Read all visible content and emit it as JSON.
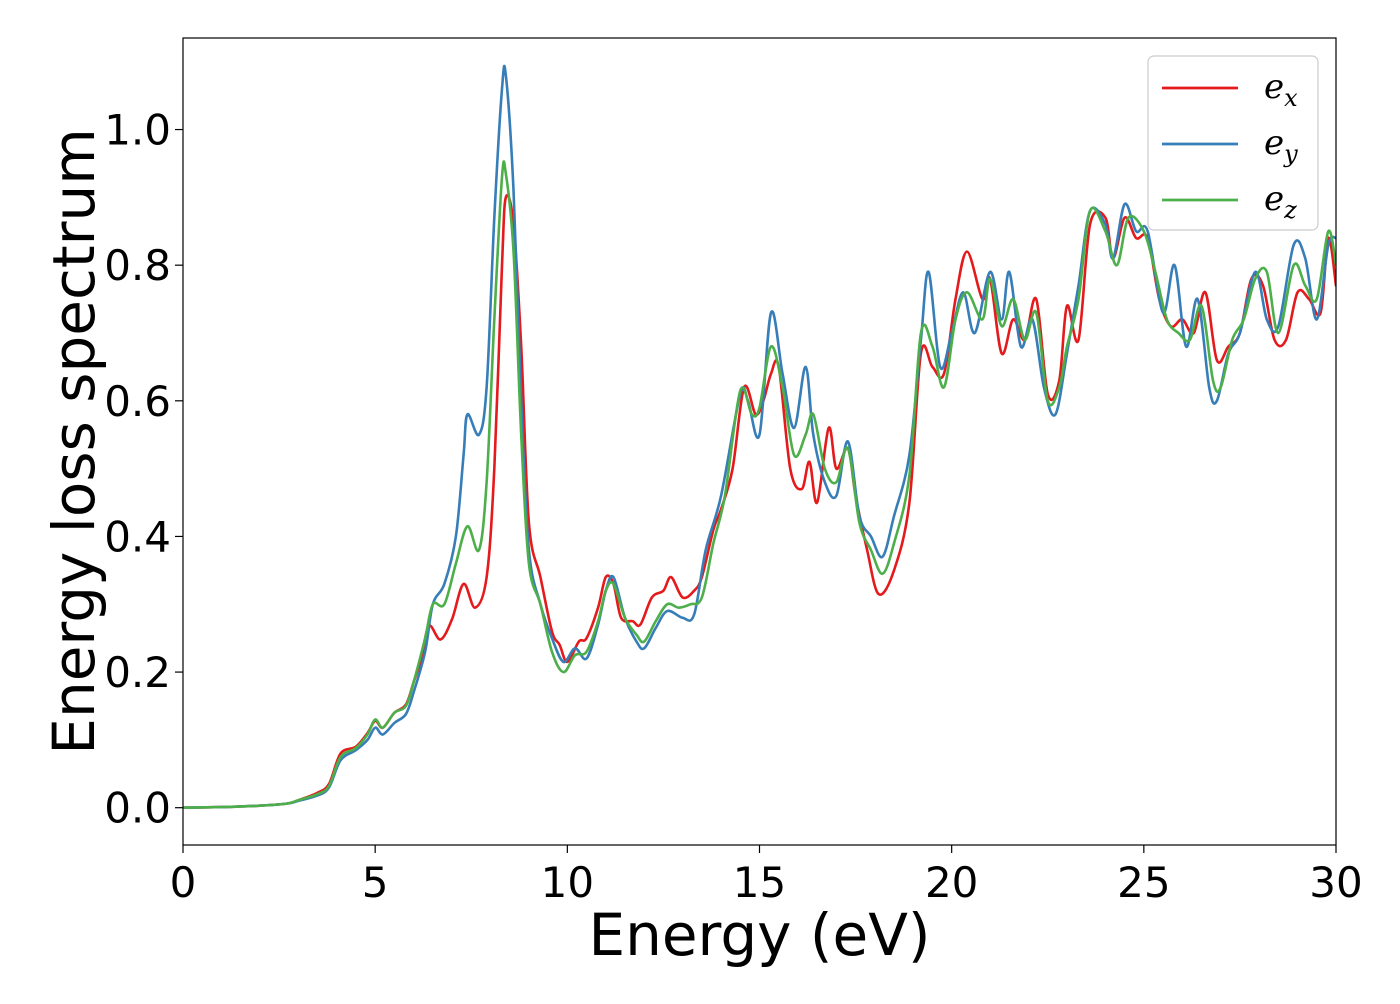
{
  "chart_data": {
    "type": "line",
    "title": "",
    "xlabel": "Energy (eV)",
    "ylabel": "Energy loss spectrum",
    "xlim": [
      0,
      30
    ],
    "ylim": [
      -0.055,
      1.135
    ],
    "xticks": [
      0,
      5,
      10,
      15,
      20,
      25,
      30
    ],
    "xtick_labels": [
      "0",
      "5",
      "10",
      "15",
      "20",
      "25",
      "30"
    ],
    "yticks": [
      0.0,
      0.2,
      0.4,
      0.6,
      0.8,
      1.0
    ],
    "ytick_labels": [
      "0.0",
      "0.2",
      "0.4",
      "0.6",
      "0.8",
      "1.0"
    ],
    "grid": false,
    "legend_position": "top-right",
    "series": [
      {
        "name": "e_x",
        "legend_base": "e",
        "legend_sub": "x",
        "color": "#e41a1c",
        "points": [
          [
            0,
            0
          ],
          [
            1,
            0.001
          ],
          [
            2,
            0.003
          ],
          [
            2.7,
            0.006
          ],
          [
            3,
            0.011
          ],
          [
            3.5,
            0.022
          ],
          [
            3.8,
            0.035
          ],
          [
            4.1,
            0.08
          ],
          [
            4.5,
            0.09
          ],
          [
            4.8,
            0.11
          ],
          [
            5,
            0.128
          ],
          [
            5.2,
            0.118
          ],
          [
            5.5,
            0.14
          ],
          [
            5.8,
            0.152
          ],
          [
            6,
            0.185
          ],
          [
            6.2,
            0.22
          ],
          [
            6.4,
            0.268
          ],
          [
            6.7,
            0.248
          ],
          [
            7,
            0.278
          ],
          [
            7.3,
            0.33
          ],
          [
            7.6,
            0.295
          ],
          [
            7.9,
            0.34
          ],
          [
            8.1,
            0.5
          ],
          [
            8.3,
            0.8
          ],
          [
            8.4,
            0.9
          ],
          [
            8.6,
            0.86
          ],
          [
            8.8,
            0.68
          ],
          [
            9,
            0.42
          ],
          [
            9.3,
            0.34
          ],
          [
            9.6,
            0.26
          ],
          [
            9.8,
            0.24
          ],
          [
            10,
            0.215
          ],
          [
            10.3,
            0.245
          ],
          [
            10.5,
            0.25
          ],
          [
            10.8,
            0.295
          ],
          [
            11,
            0.34
          ],
          [
            11.2,
            0.33
          ],
          [
            11.4,
            0.28
          ],
          [
            11.7,
            0.275
          ],
          [
            11.9,
            0.27
          ],
          [
            12.2,
            0.31
          ],
          [
            12.5,
            0.32
          ],
          [
            12.7,
            0.34
          ],
          [
            13,
            0.31
          ],
          [
            13.3,
            0.32
          ],
          [
            13.5,
            0.34
          ],
          [
            13.8,
            0.41
          ],
          [
            14,
            0.44
          ],
          [
            14.3,
            0.5
          ],
          [
            14.6,
            0.62
          ],
          [
            14.9,
            0.58
          ],
          [
            15.1,
            0.6
          ],
          [
            15.3,
            0.64
          ],
          [
            15.5,
            0.65
          ],
          [
            15.8,
            0.5
          ],
          [
            16.1,
            0.47
          ],
          [
            16.3,
            0.51
          ],
          [
            16.5,
            0.45
          ],
          [
            16.8,
            0.56
          ],
          [
            17,
            0.5
          ],
          [
            17.3,
            0.53
          ],
          [
            17.5,
            0.46
          ],
          [
            17.8,
            0.38
          ],
          [
            18.1,
            0.315
          ],
          [
            18.5,
            0.35
          ],
          [
            18.9,
            0.45
          ],
          [
            19.2,
            0.67
          ],
          [
            19.5,
            0.65
          ],
          [
            19.8,
            0.64
          ],
          [
            20.1,
            0.75
          ],
          [
            20.4,
            0.82
          ],
          [
            20.8,
            0.75
          ],
          [
            21,
            0.78
          ],
          [
            21.3,
            0.67
          ],
          [
            21.6,
            0.72
          ],
          [
            21.9,
            0.69
          ],
          [
            22.2,
            0.75
          ],
          [
            22.5,
            0.61
          ],
          [
            22.8,
            0.63
          ],
          [
            23,
            0.74
          ],
          [
            23.3,
            0.69
          ],
          [
            23.6,
            0.86
          ],
          [
            24,
            0.87
          ],
          [
            24.2,
            0.81
          ],
          [
            24.5,
            0.87
          ],
          [
            24.8,
            0.84
          ],
          [
            25.1,
            0.84
          ],
          [
            25.4,
            0.75
          ],
          [
            25.7,
            0.71
          ],
          [
            26,
            0.72
          ],
          [
            26.3,
            0.7
          ],
          [
            26.6,
            0.76
          ],
          [
            26.9,
            0.66
          ],
          [
            27.2,
            0.68
          ],
          [
            27.5,
            0.7
          ],
          [
            27.8,
            0.78
          ],
          [
            28.1,
            0.77
          ],
          [
            28.4,
            0.69
          ],
          [
            28.7,
            0.69
          ],
          [
            29,
            0.76
          ],
          [
            29.3,
            0.75
          ],
          [
            29.6,
            0.73
          ],
          [
            29.8,
            0.84
          ],
          [
            30,
            0.77
          ]
        ]
      },
      {
        "name": "e_y",
        "legend_base": "e",
        "legend_sub": "y",
        "color": "#377eb8",
        "points": [
          [
            0,
            0
          ],
          [
            1,
            0.001
          ],
          [
            2,
            0.003
          ],
          [
            2.7,
            0.006
          ],
          [
            3,
            0.01
          ],
          [
            3.5,
            0.018
          ],
          [
            3.8,
            0.03
          ],
          [
            4.1,
            0.07
          ],
          [
            4.5,
            0.085
          ],
          [
            4.8,
            0.1
          ],
          [
            5,
            0.118
          ],
          [
            5.2,
            0.108
          ],
          [
            5.5,
            0.125
          ],
          [
            5.8,
            0.138
          ],
          [
            6,
            0.17
          ],
          [
            6.3,
            0.23
          ],
          [
            6.5,
            0.3
          ],
          [
            6.8,
            0.33
          ],
          [
            7.1,
            0.4
          ],
          [
            7.3,
            0.52
          ],
          [
            7.4,
            0.58
          ],
          [
            7.7,
            0.55
          ],
          [
            7.9,
            0.62
          ],
          [
            8.1,
            0.87
          ],
          [
            8.3,
            1.06
          ],
          [
            8.4,
            1.08
          ],
          [
            8.6,
            0.91
          ],
          [
            8.8,
            0.6
          ],
          [
            9,
            0.38
          ],
          [
            9.3,
            0.3
          ],
          [
            9.6,
            0.25
          ],
          [
            9.9,
            0.215
          ],
          [
            10.2,
            0.235
          ],
          [
            10.5,
            0.22
          ],
          [
            10.8,
            0.27
          ],
          [
            11,
            0.32
          ],
          [
            11.2,
            0.34
          ],
          [
            11.5,
            0.28
          ],
          [
            11.8,
            0.245
          ],
          [
            12,
            0.235
          ],
          [
            12.3,
            0.265
          ],
          [
            12.6,
            0.29
          ],
          [
            13,
            0.28
          ],
          [
            13.3,
            0.285
          ],
          [
            13.6,
            0.38
          ],
          [
            14,
            0.46
          ],
          [
            14.5,
            0.61
          ],
          [
            14.7,
            0.6
          ],
          [
            15,
            0.55
          ],
          [
            15.3,
            0.73
          ],
          [
            15.6,
            0.64
          ],
          [
            15.9,
            0.56
          ],
          [
            16.2,
            0.65
          ],
          [
            16.4,
            0.55
          ],
          [
            16.7,
            0.48
          ],
          [
            17,
            0.46
          ],
          [
            17.3,
            0.54
          ],
          [
            17.6,
            0.43
          ],
          [
            17.9,
            0.4
          ],
          [
            18.2,
            0.37
          ],
          [
            18.5,
            0.43
          ],
          [
            18.9,
            0.52
          ],
          [
            19.2,
            0.69
          ],
          [
            19.4,
            0.79
          ],
          [
            19.7,
            0.65
          ],
          [
            20,
            0.7
          ],
          [
            20.3,
            0.76
          ],
          [
            20.6,
            0.7
          ],
          [
            21,
            0.79
          ],
          [
            21.3,
            0.72
          ],
          [
            21.5,
            0.79
          ],
          [
            21.8,
            0.68
          ],
          [
            22.1,
            0.72
          ],
          [
            22.4,
            0.62
          ],
          [
            22.7,
            0.58
          ],
          [
            23,
            0.67
          ],
          [
            23.3,
            0.77
          ],
          [
            23.6,
            0.88
          ],
          [
            24,
            0.86
          ],
          [
            24.2,
            0.81
          ],
          [
            24.5,
            0.89
          ],
          [
            24.8,
            0.85
          ],
          [
            25.1,
            0.85
          ],
          [
            25.5,
            0.73
          ],
          [
            25.8,
            0.8
          ],
          [
            26.1,
            0.68
          ],
          [
            26.4,
            0.75
          ],
          [
            26.7,
            0.62
          ],
          [
            26.9,
            0.6
          ],
          [
            27.2,
            0.67
          ],
          [
            27.5,
            0.7
          ],
          [
            27.9,
            0.79
          ],
          [
            28.2,
            0.72
          ],
          [
            28.5,
            0.71
          ],
          [
            28.9,
            0.83
          ],
          [
            29.2,
            0.81
          ],
          [
            29.5,
            0.72
          ],
          [
            29.8,
            0.83
          ],
          [
            30,
            0.84
          ]
        ]
      },
      {
        "name": "e_z",
        "legend_base": "e",
        "legend_sub": "z",
        "color": "#4daf4a",
        "points": [
          [
            0,
            0
          ],
          [
            1,
            0.001
          ],
          [
            2,
            0.003
          ],
          [
            2.7,
            0.006
          ],
          [
            3,
            0.011
          ],
          [
            3.5,
            0.02
          ],
          [
            3.8,
            0.032
          ],
          [
            4.1,
            0.075
          ],
          [
            4.5,
            0.088
          ],
          [
            4.8,
            0.108
          ],
          [
            5,
            0.13
          ],
          [
            5.2,
            0.118
          ],
          [
            5.5,
            0.14
          ],
          [
            5.8,
            0.15
          ],
          [
            6,
            0.185
          ],
          [
            6.3,
            0.25
          ],
          [
            6.5,
            0.3
          ],
          [
            6.8,
            0.3
          ],
          [
            7.1,
            0.36
          ],
          [
            7.4,
            0.415
          ],
          [
            7.7,
            0.38
          ],
          [
            7.9,
            0.48
          ],
          [
            8.1,
            0.72
          ],
          [
            8.3,
            0.93
          ],
          [
            8.4,
            0.935
          ],
          [
            8.6,
            0.82
          ],
          [
            8.8,
            0.55
          ],
          [
            9,
            0.36
          ],
          [
            9.3,
            0.3
          ],
          [
            9.6,
            0.23
          ],
          [
            9.9,
            0.2
          ],
          [
            10.2,
            0.225
          ],
          [
            10.5,
            0.23
          ],
          [
            10.8,
            0.275
          ],
          [
            11,
            0.32
          ],
          [
            11.2,
            0.33
          ],
          [
            11.5,
            0.28
          ],
          [
            11.8,
            0.255
          ],
          [
            12,
            0.245
          ],
          [
            12.3,
            0.275
          ],
          [
            12.6,
            0.3
          ],
          [
            12.9,
            0.295
          ],
          [
            13.2,
            0.3
          ],
          [
            13.5,
            0.31
          ],
          [
            13.8,
            0.39
          ],
          [
            14.1,
            0.46
          ],
          [
            14.5,
            0.615
          ],
          [
            14.8,
            0.58
          ],
          [
            15,
            0.59
          ],
          [
            15.3,
            0.68
          ],
          [
            15.6,
            0.62
          ],
          [
            15.9,
            0.52
          ],
          [
            16.2,
            0.55
          ],
          [
            16.4,
            0.58
          ],
          [
            16.7,
            0.5
          ],
          [
            17,
            0.48
          ],
          [
            17.3,
            0.53
          ],
          [
            17.6,
            0.42
          ],
          [
            17.9,
            0.38
          ],
          [
            18.2,
            0.345
          ],
          [
            18.5,
            0.39
          ],
          [
            18.9,
            0.49
          ],
          [
            19.2,
            0.7
          ],
          [
            19.5,
            0.68
          ],
          [
            19.8,
            0.62
          ],
          [
            20.1,
            0.72
          ],
          [
            20.4,
            0.76
          ],
          [
            20.8,
            0.72
          ],
          [
            21,
            0.78
          ],
          [
            21.3,
            0.71
          ],
          [
            21.6,
            0.75
          ],
          [
            21.9,
            0.69
          ],
          [
            22.2,
            0.73
          ],
          [
            22.5,
            0.6
          ],
          [
            22.8,
            0.62
          ],
          [
            23,
            0.68
          ],
          [
            23.3,
            0.75
          ],
          [
            23.6,
            0.88
          ],
          [
            24,
            0.85
          ],
          [
            24.3,
            0.8
          ],
          [
            24.6,
            0.87
          ],
          [
            25,
            0.85
          ],
          [
            25.3,
            0.79
          ],
          [
            25.6,
            0.72
          ],
          [
            25.9,
            0.7
          ],
          [
            26.2,
            0.69
          ],
          [
            26.5,
            0.74
          ],
          [
            26.8,
            0.63
          ],
          [
            27,
            0.62
          ],
          [
            27.3,
            0.69
          ],
          [
            27.6,
            0.72
          ],
          [
            27.9,
            0.78
          ],
          [
            28.2,
            0.79
          ],
          [
            28.5,
            0.7
          ],
          [
            28.9,
            0.8
          ],
          [
            29.2,
            0.77
          ],
          [
            29.5,
            0.75
          ],
          [
            29.8,
            0.85
          ],
          [
            30,
            0.8
          ]
        ]
      }
    ]
  }
}
